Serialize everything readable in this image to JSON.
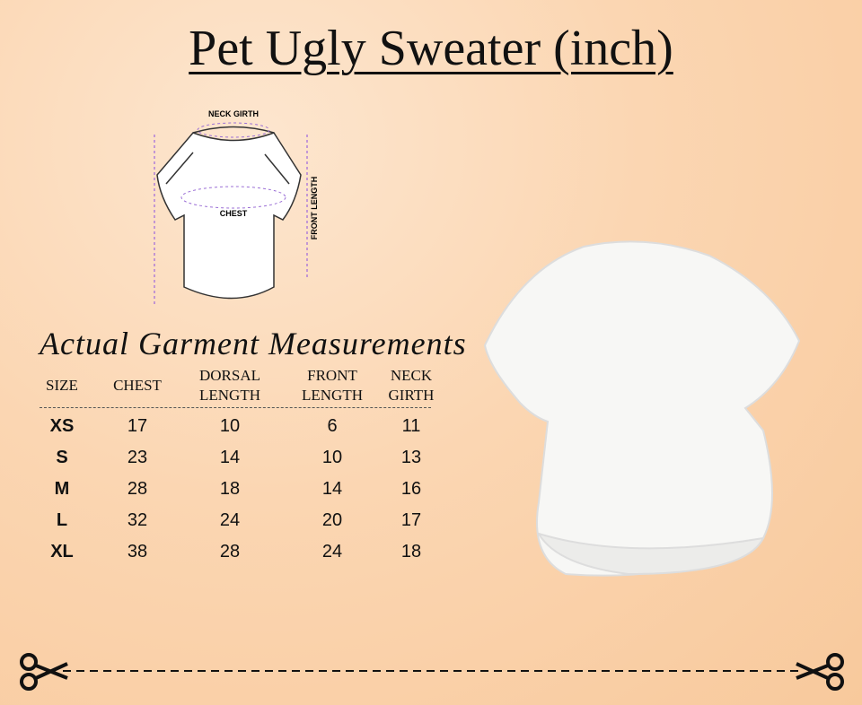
{
  "title": "Pet Ugly Sweater (inch)",
  "diagram": {
    "neck_label": "NECK GIRTH",
    "chest_label": "CHEST",
    "front_label": "FRONT LENGTH"
  },
  "table": {
    "heading": "Actual Garment Measurements",
    "headers": [
      "SIZE",
      "CHEST",
      "DORSAL LENGTH",
      "FRONT LENGTH",
      "NECK GIRTH"
    ],
    "rows": [
      [
        "XS",
        17,
        10,
        6,
        11
      ],
      [
        "S",
        23,
        14,
        10,
        13
      ],
      [
        "M",
        28,
        18,
        14,
        16
      ],
      [
        "L",
        32,
        24,
        20,
        17
      ],
      [
        "XL",
        38,
        28,
        24,
        18
      ]
    ]
  }
}
